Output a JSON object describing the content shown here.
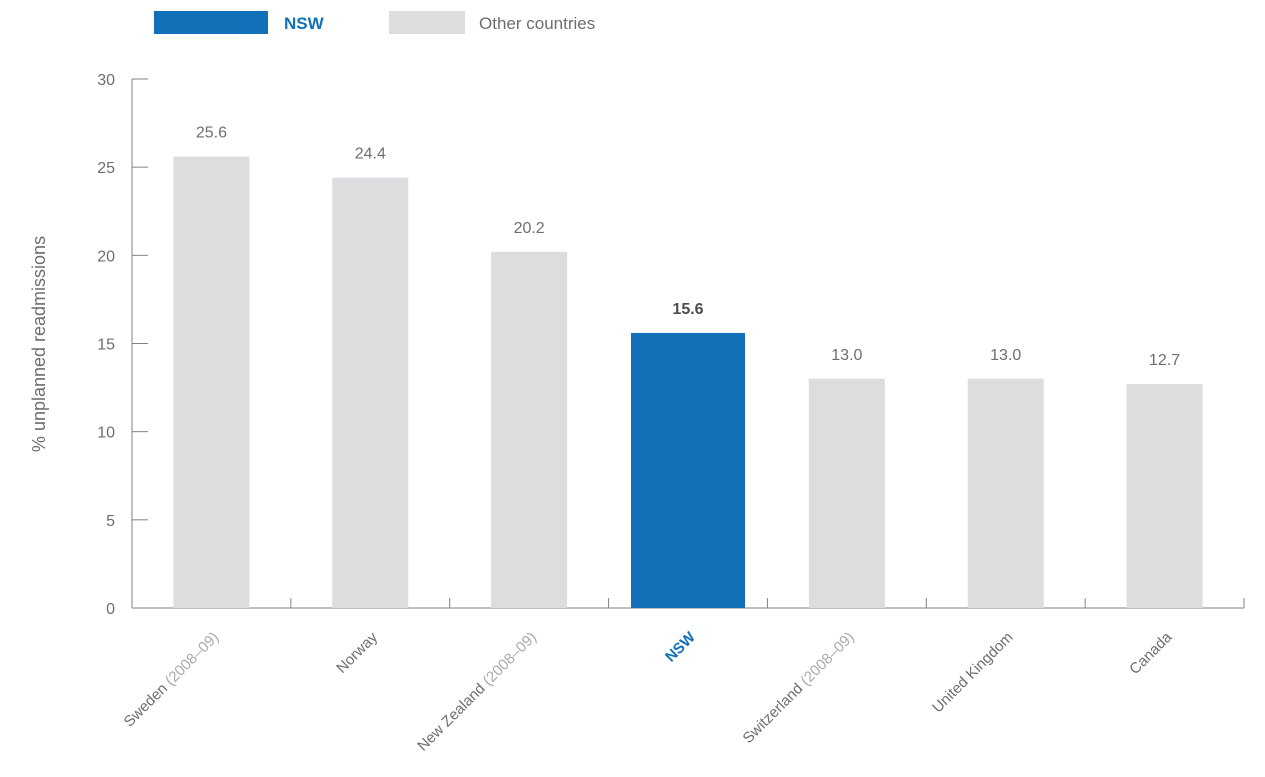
{
  "chart_data": {
    "type": "bar",
    "categories": [
      {
        "main": "Sweden",
        "sub": "(2008–09)"
      },
      {
        "main": "Norway",
        "sub": ""
      },
      {
        "main": "New Zealand",
        "sub": "(2008–09)"
      },
      {
        "main": "NSW",
        "sub": ""
      },
      {
        "main": "Switzerland",
        "sub": "(2008–09)"
      },
      {
        "main": "United Kingdom",
        "sub": ""
      },
      {
        "main": "Canada",
        "sub": ""
      }
    ],
    "values": [
      25.6,
      24.4,
      20.2,
      15.6,
      13.0,
      13.0,
      12.7
    ],
    "value_labels": [
      "25.6",
      "24.4",
      "20.2",
      "15.6",
      "13.0",
      "13.0",
      "12.7"
    ],
    "highlight_index": 3,
    "ylabel": "% unplanned readmissions",
    "ylim": [
      0,
      30
    ],
    "yticks": [
      0,
      5,
      10,
      15,
      20,
      25,
      30
    ],
    "grid": false,
    "legend": {
      "placement": "top-left",
      "entries": [
        {
          "label": "NSW",
          "color": "#1170b8"
        },
        {
          "label": "Other countries",
          "color": "#dcddde"
        }
      ]
    },
    "colors": {
      "highlight": "#1170b8",
      "other": "#dcddde"
    }
  }
}
